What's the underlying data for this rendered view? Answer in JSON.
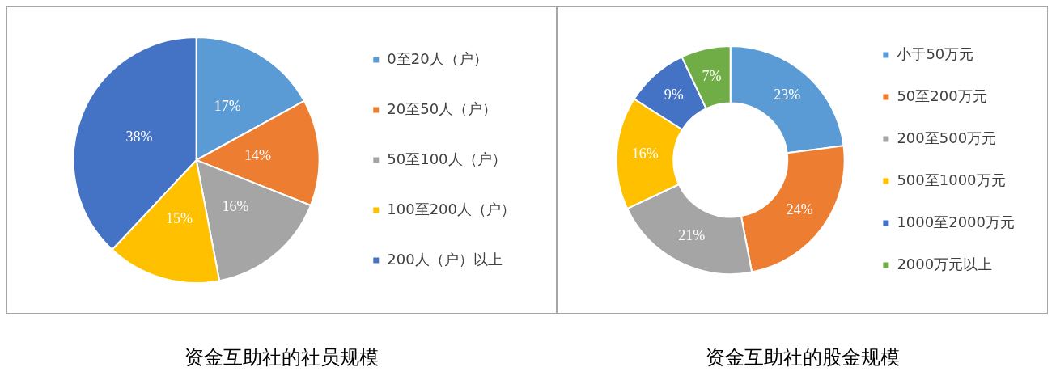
{
  "chart_data": [
    {
      "type": "pie",
      "title": "资金互助社的社员规模",
      "categories": [
        "0至20人（户）",
        "20至50人（户）",
        "50至100人（户）",
        "100至200人（户）",
        "200人（户）以上"
      ],
      "values": [
        17,
        14,
        16,
        15,
        38
      ],
      "colors": [
        "#5b9bd5",
        "#ed7d31",
        "#a5a5a5",
        "#ffc000",
        "#4472c4"
      ],
      "value_labels": [
        "17%",
        "14%",
        "16%",
        "15%",
        "38%"
      ],
      "legend": "right"
    },
    {
      "type": "donut",
      "title": "资金互助社的股金规模",
      "categories": [
        "小于50万元",
        "50至200万元",
        "200至500万元",
        "500至1000万元",
        "1000至2000万元",
        "2000万元以上"
      ],
      "values": [
        23,
        24,
        21,
        16,
        9,
        7
      ],
      "colors": [
        "#5b9bd5",
        "#ed7d31",
        "#a5a5a5",
        "#ffc000",
        "#4472c4",
        "#70ad47"
      ],
      "value_labels": [
        "23%",
        "24%",
        "21%",
        "16%",
        "9%",
        "7%"
      ],
      "legend": "right"
    }
  ]
}
